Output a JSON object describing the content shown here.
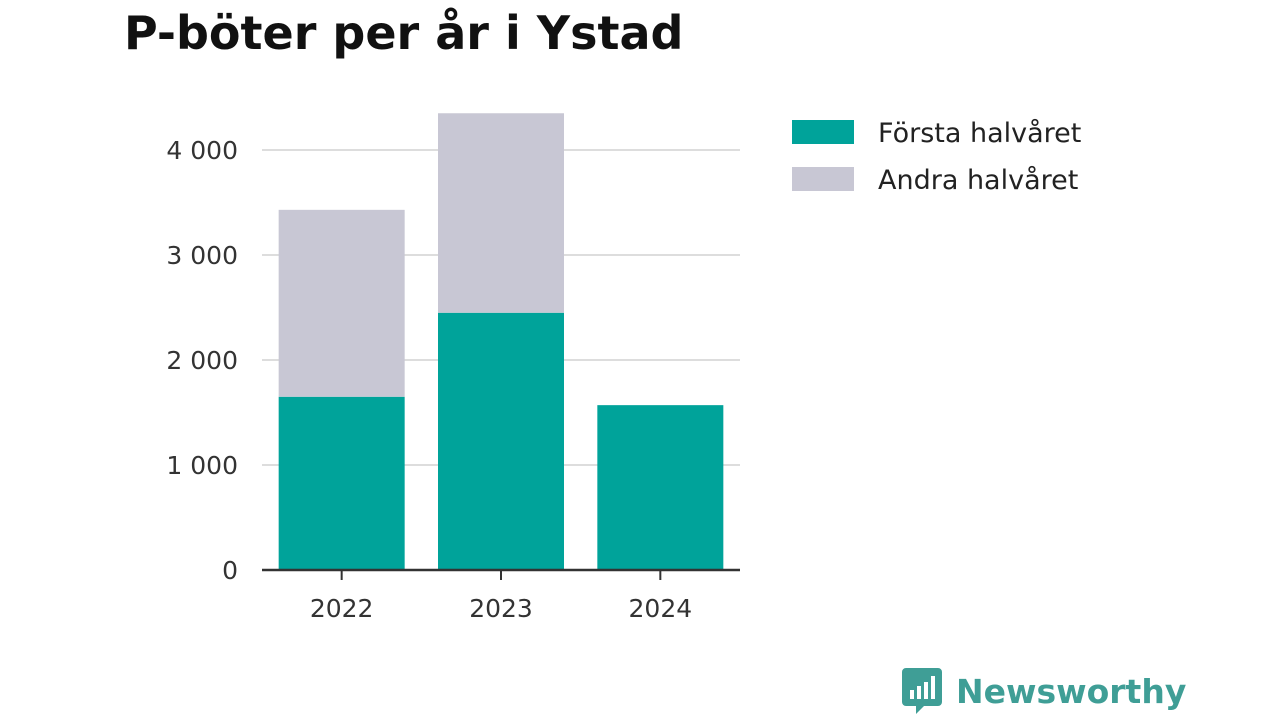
{
  "chart_data": {
    "type": "bar",
    "stacked": true,
    "title": "P-böter per år i Ystad",
    "xlabel": "",
    "ylabel": "",
    "categories": [
      "2022",
      "2023",
      "2024"
    ],
    "series": [
      {
        "name": "Första halvåret",
        "color": "#00a39a",
        "values": [
          1650,
          2450,
          1570
        ]
      },
      {
        "name": "Andra halvåret",
        "color": "#c8c7d4",
        "values": [
          1780,
          1900,
          0
        ]
      }
    ],
    "ylim": [
      0,
      4400
    ],
    "yticks": [
      0,
      1000,
      2000,
      3000,
      4000
    ],
    "ytick_labels": [
      "0",
      "1 000",
      "2 000",
      "3 000",
      "4 000"
    ],
    "grid": true,
    "legend_position": "right"
  },
  "brand": {
    "name": "Newsworthy",
    "icon": "newsworthy-logo-icon",
    "color": "#3f9e96"
  }
}
